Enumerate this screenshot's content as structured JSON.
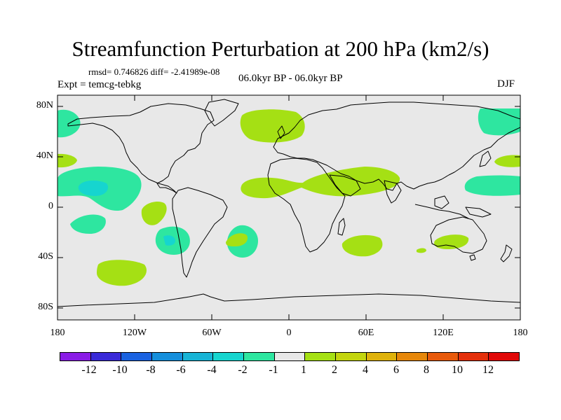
{
  "title": "Streamfunction Perturbation at 200 hPa (km2/s)",
  "stats": "rmsd= 0.746826 diff= -2.41989e-08",
  "experiment": "Expt = temcg-tebkg",
  "period": "06.0kyr BP - 06.0kyr BP",
  "season": "DJF",
  "lat_labels": [
    "80N",
    "40N",
    "0",
    "40S",
    "80S"
  ],
  "lon_labels": [
    "180",
    "120W",
    "60W",
    "0",
    "60E",
    "120E",
    "180"
  ],
  "colorbar": {
    "labels": [
      "-12",
      "-10",
      "-8",
      "-6",
      "-4",
      "-2",
      "-1",
      "1",
      "2",
      "4",
      "6",
      "8",
      "10",
      "12"
    ],
    "colors": [
      "#8a1ce6",
      "#3a2ad8",
      "#1a62e0",
      "#158fdc",
      "#17b4d6",
      "#16d5cf",
      "#2ee6a0",
      "#e8e8e8",
      "#a5e014",
      "#c3d50e",
      "#dfb20b",
      "#e6870a",
      "#e85a0b",
      "#e4300b",
      "#e00808"
    ]
  },
  "map_colors": {
    "background": "#e8e8e8",
    "negative_1_2": "#2ee6a0",
    "negative_2_4": "#16d5cf",
    "negative_4_6": "#17b4d6",
    "positive_1_2": "#a5e014"
  }
}
